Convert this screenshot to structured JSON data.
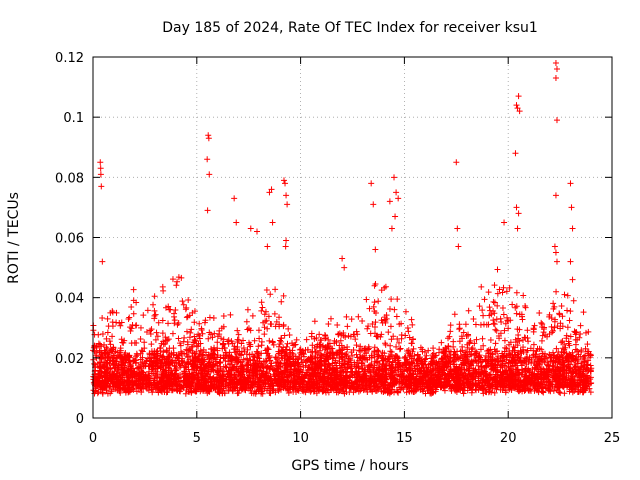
{
  "chart_data": {
    "type": "scatter",
    "title": "Day 185 of 2024, Rate Of TEC Index for receiver ksu1",
    "xlabel": "GPS time / hours",
    "ylabel": "ROTI / TECUs",
    "xlim": [
      0,
      25
    ],
    "ylim": [
      0,
      0.12
    ],
    "xticks": [
      0,
      5,
      10,
      15,
      20,
      25
    ],
    "xtick_labels": [
      "0",
      "5",
      "10",
      "15",
      "20",
      "25"
    ],
    "yticks": [
      0,
      0.02,
      0.04,
      0.06,
      0.08,
      0.1,
      0.12
    ],
    "ytick_labels": [
      "0",
      "0.02",
      "0.04",
      "0.06",
      "0.08",
      "0.1",
      "0.12"
    ],
    "grid": true,
    "marker": "plus",
    "color": "#ff0000",
    "x_range_of_data": [
      0,
      24
    ],
    "series": [
      {
        "name": "ROTI",
        "points": [
          [
            0.35,
            0.085
          ],
          [
            0.37,
            0.083
          ],
          [
            0.38,
            0.081
          ],
          [
            0.4,
            0.077
          ],
          [
            0.45,
            0.052
          ],
          [
            5.55,
            0.094
          ],
          [
            5.58,
            0.093
          ],
          [
            5.5,
            0.086
          ],
          [
            5.6,
            0.081
          ],
          [
            5.52,
            0.069
          ],
          [
            6.8,
            0.073
          ],
          [
            6.9,
            0.065
          ],
          [
            7.6,
            0.063
          ],
          [
            7.9,
            0.062
          ],
          [
            8.5,
            0.075
          ],
          [
            8.6,
            0.076
          ],
          [
            8.65,
            0.065
          ],
          [
            8.4,
            0.057
          ],
          [
            9.2,
            0.079
          ],
          [
            9.25,
            0.078
          ],
          [
            9.3,
            0.074
          ],
          [
            9.35,
            0.071
          ],
          [
            9.3,
            0.059
          ],
          [
            9.28,
            0.057
          ],
          [
            12.0,
            0.053
          ],
          [
            12.1,
            0.05
          ],
          [
            13.4,
            0.078
          ],
          [
            13.5,
            0.071
          ],
          [
            13.6,
            0.056
          ],
          [
            14.3,
            0.072
          ],
          [
            14.5,
            0.08
          ],
          [
            14.6,
            0.075
          ],
          [
            14.7,
            0.073
          ],
          [
            14.55,
            0.067
          ],
          [
            14.4,
            0.063
          ],
          [
            17.5,
            0.085
          ],
          [
            17.55,
            0.063
          ],
          [
            17.6,
            0.057
          ],
          [
            19.8,
            0.065
          ],
          [
            20.4,
            0.07
          ],
          [
            20.5,
            0.068
          ],
          [
            20.45,
            0.063
          ],
          [
            20.35,
            0.088
          ],
          [
            20.4,
            0.104
          ],
          [
            20.45,
            0.103
          ],
          [
            20.5,
            0.107
          ],
          [
            20.55,
            0.102
          ],
          [
            22.3,
            0.118
          ],
          [
            22.35,
            0.116
          ],
          [
            22.3,
            0.113
          ],
          [
            22.35,
            0.099
          ],
          [
            22.3,
            0.074
          ],
          [
            22.25,
            0.057
          ],
          [
            22.3,
            0.055
          ],
          [
            22.35,
            0.052
          ],
          [
            23.0,
            0.078
          ],
          [
            23.05,
            0.07
          ],
          [
            23.1,
            0.063
          ],
          [
            23.0,
            0.052
          ],
          [
            23.1,
            0.046
          ]
        ]
      }
    ]
  }
}
